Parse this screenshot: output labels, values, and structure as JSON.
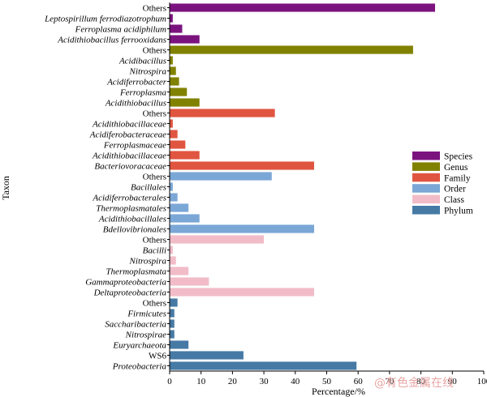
{
  "chart_data": {
    "type": "bar",
    "orientation": "horizontal",
    "xlabel": "Percentage/%",
    "ylabel": "Taxon",
    "xlim": [
      0,
      100
    ],
    "xticks": [
      0,
      10,
      20,
      30,
      40,
      50,
      60,
      70,
      80,
      90,
      100
    ],
    "legend_position": "right",
    "grid": false,
    "series": [
      {
        "name": "Species",
        "color": "#7b137f",
        "categories": [
          "Others",
          "Leptospirillum ferrodiazotrophum",
          "Ferroplasma acidiphilum",
          "Acidithiobacillus ferrooxidans"
        ],
        "italic": [
          false,
          true,
          true,
          true
        ],
        "values": [
          84.5,
          1.0,
          4.0,
          9.5
        ]
      },
      {
        "name": "Genus",
        "color": "#818100",
        "categories": [
          "Others",
          "Acidibacillus",
          "Nitrospira",
          "Acidiferrobacter",
          "Ferroplasma",
          "Acidithiobacillus"
        ],
        "italic": [
          false,
          true,
          true,
          true,
          true,
          true
        ],
        "values": [
          77.5,
          1.0,
          2.0,
          3.0,
          5.5,
          9.5
        ]
      },
      {
        "name": "Family",
        "color": "#e05540",
        "categories": [
          "Others",
          "Acidithiobacillaceae",
          "Acidiferobacteraceae",
          "Ferroplasmaceae",
          "Acidithiobacillaceae",
          "Bacteriovoracaceae"
        ],
        "italic": [
          false,
          true,
          true,
          true,
          true,
          true
        ],
        "values": [
          33.5,
          1.0,
          2.5,
          5.0,
          9.5,
          46.0
        ]
      },
      {
        "name": "Order",
        "color": "#7ba7d6",
        "categories": [
          "Others",
          "Bacillales",
          "Acidiferrobacterales",
          "Thermoplasmatales",
          "Acidithiobacillales",
          "Bdellovibrionales"
        ],
        "italic": [
          false,
          true,
          true,
          true,
          true,
          true
        ],
        "values": [
          32.5,
          1.0,
          2.5,
          6.0,
          9.5,
          46.0
        ]
      },
      {
        "name": "Class",
        "color": "#f1bcc8",
        "categories": [
          "Others",
          "Bacilli",
          "Nitrospira",
          "Thermoplasmata",
          "Gammaproteobacteria",
          "Deltaproteobacteria"
        ],
        "italic": [
          false,
          true,
          true,
          true,
          true,
          true
        ],
        "values": [
          30.0,
          1.0,
          2.0,
          6.0,
          12.5,
          46.0
        ]
      },
      {
        "name": "Phylum",
        "color": "#467aa5",
        "categories": [
          "Others",
          "Firmicutes",
          "Saccharibacteria",
          "Nitrospirae",
          "Euryarchaeota",
          "WS6",
          "Proteobacteria"
        ],
        "italic": [
          false,
          true,
          true,
          true,
          true,
          false,
          true
        ],
        "values": [
          2.5,
          1.5,
          1.5,
          1.5,
          6.0,
          23.5,
          59.5
        ]
      }
    ]
  },
  "watermark": "@有色金属在线"
}
